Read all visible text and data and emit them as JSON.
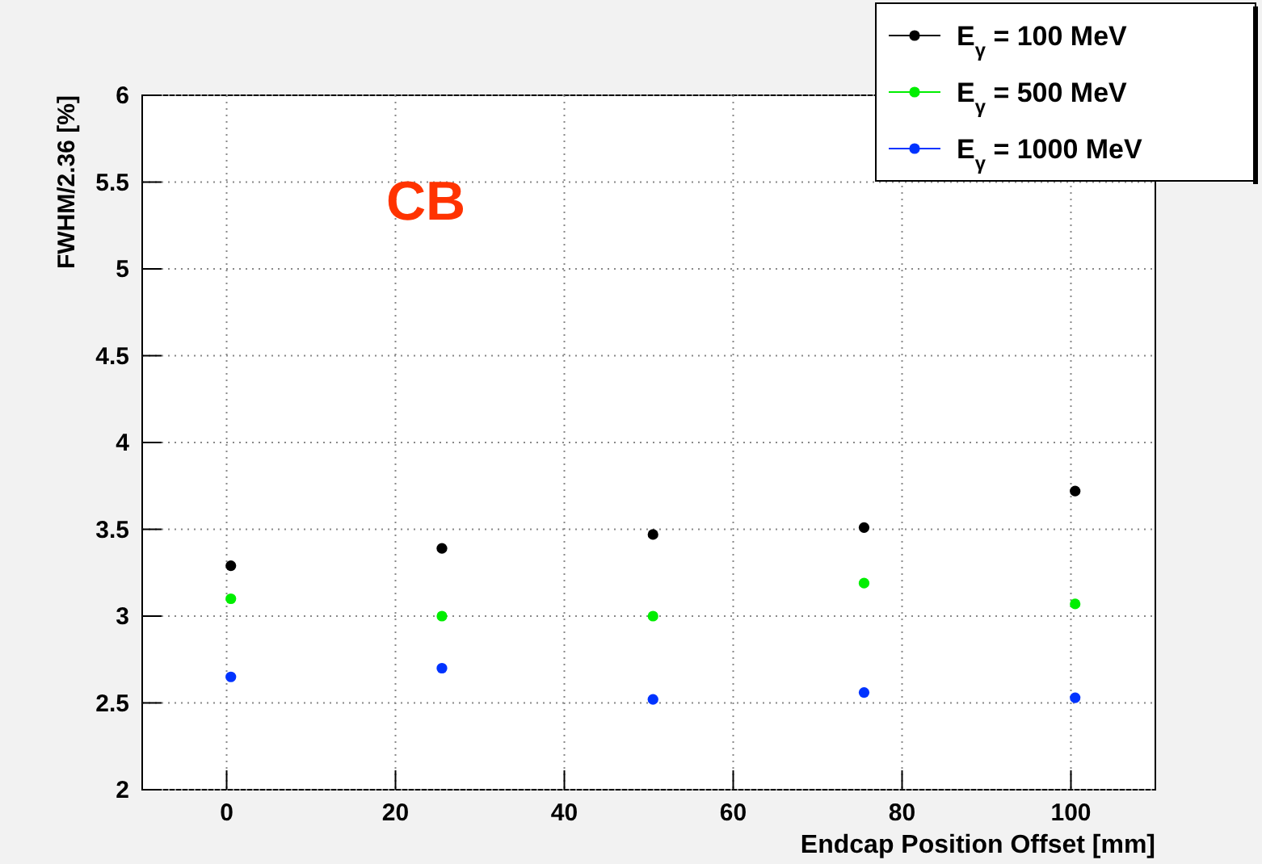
{
  "chart_data": {
    "type": "scatter",
    "xlabel": "Endcap Position Offset [mm]",
    "ylabel": "FWHM/2.36 [%]",
    "x": [
      0.5,
      25.5,
      50.5,
      75.5,
      100.5
    ],
    "series": [
      {
        "name": "E$_{γ}$ = 100 MeV",
        "color": "#000000",
        "values": [
          3.29,
          3.39,
          3.47,
          3.51,
          3.72
        ]
      },
      {
        "name": "E$_{γ}$ = 500 MeV",
        "color": "#00ee00",
        "values": [
          3.1,
          3.0,
          3.0,
          3.19,
          3.07
        ]
      },
      {
        "name": "E$_{γ}$ = 1000 MeV",
        "color": "#0033ff",
        "values": [
          2.65,
          2.7,
          2.52,
          2.56,
          2.53
        ]
      }
    ],
    "xlim": [
      -10,
      110
    ],
    "xticks": [
      0,
      20,
      40,
      60,
      80,
      100
    ],
    "ylim": [
      2,
      6
    ],
    "yticks": [
      2,
      2.5,
      3,
      3.5,
      4,
      4.5,
      5,
      5.5,
      6
    ],
    "grid": true,
    "legend": "top right",
    "marker": "circle",
    "annotations": [
      "CB"
    ]
  }
}
